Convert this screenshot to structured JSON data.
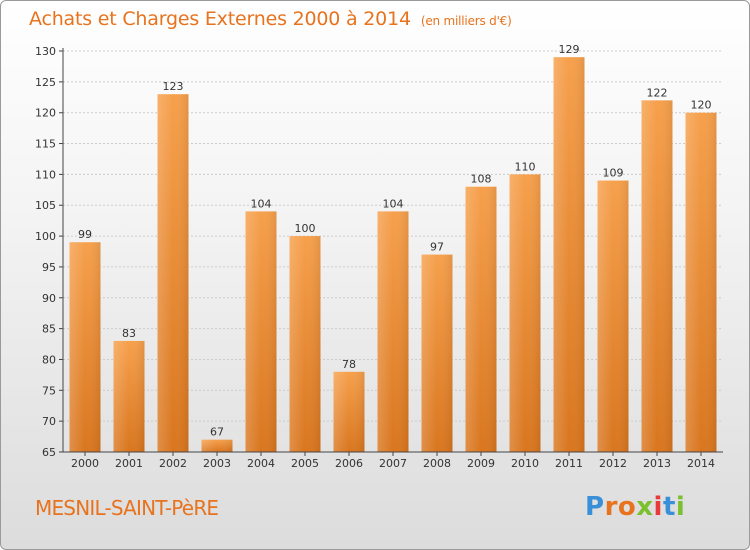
{
  "header": {
    "title": "Achats et Charges Externes 2000 à 2014",
    "subtitle": "(en milliers d'€)"
  },
  "footer": {
    "commune": "MESNIL-SAINT-PèRE",
    "brand": "Proxiti",
    "brand_colors": [
      "#3a8fd9",
      "#e8731e",
      "#e8731e",
      "#7cbf2f",
      "#e83a3a",
      "#3a8fd9",
      "#7cbf2f"
    ]
  },
  "colors": {
    "bar_top": "#f6a04c",
    "bar_bottom": "#d9761f",
    "accent": "#e8731e",
    "axis": "#444444",
    "grid": "#cccccc"
  },
  "chart_data": {
    "type": "bar",
    "title": "Achats et Charges Externes 2000 à 2014",
    "subtitle": "(en milliers d'€)",
    "categories": [
      "2000",
      "2001",
      "2002",
      "2003",
      "2004",
      "2005",
      "2006",
      "2007",
      "2008",
      "2009",
      "2010",
      "2011",
      "2012",
      "2013",
      "2014"
    ],
    "values": [
      99,
      83,
      123,
      67,
      104,
      100,
      78,
      104,
      97,
      108,
      110,
      129,
      109,
      122,
      120
    ],
    "ylim": [
      65,
      130
    ],
    "yticks": [
      65,
      70,
      75,
      80,
      85,
      90,
      95,
      100,
      105,
      110,
      115,
      120,
      125,
      130
    ],
    "grid": true,
    "xlabel": "",
    "ylabel": ""
  }
}
